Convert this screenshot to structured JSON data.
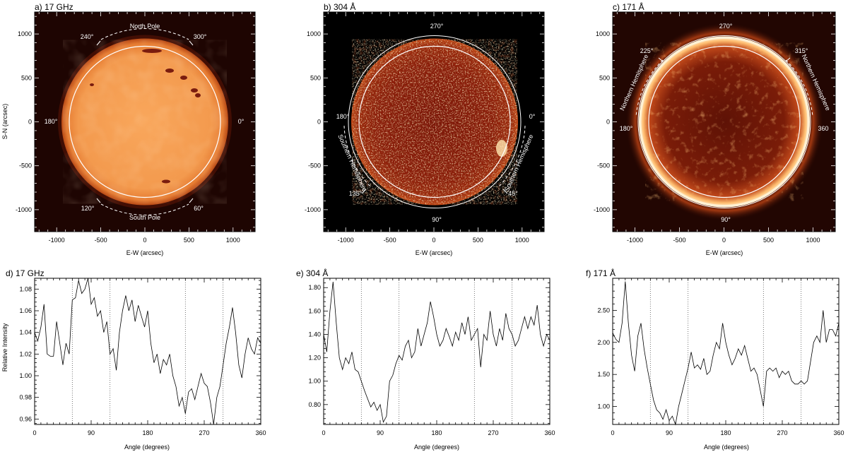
{
  "figure": {
    "panels": [
      {
        "label": "a) 17 GHz"
      },
      {
        "label": "b) 304 Å"
      },
      {
        "label": "c) 171 Å"
      },
      {
        "label": "d) 17 GHz"
      },
      {
        "label": "e) 304 Å"
      },
      {
        "label": "f) 171 Å"
      }
    ]
  },
  "images": {
    "xlabel": "E-W (arcsec)",
    "ylabel": "S-N (arcsec)",
    "tick_values": [
      -1000,
      -500,
      0,
      500,
      1000
    ],
    "range": [
      -1250,
      1250
    ],
    "colormap": [
      "#2a0602",
      "#8a1a08",
      "#e0641c",
      "#f6a25c",
      "#fff2dc"
    ],
    "a": {
      "angle_labels": [
        "North Pole",
        "South Pole",
        "240°",
        "300°",
        "180°",
        "0°",
        "120°",
        "60°"
      ],
      "boundary_angles": [
        60,
        120,
        240,
        300
      ]
    },
    "b": {
      "angle_labels": [
        "270°",
        "90°",
        "180°",
        "0°",
        "135°",
        "45°"
      ],
      "hemisphere_labels": [
        "Southern Hemisphere",
        "Southern Hemisphere"
      ],
      "boundary_angles": [
        45,
        135
      ]
    },
    "c": {
      "angle_labels": [
        "270°",
        "90°",
        "180°",
        "360",
        "225°",
        "315°"
      ],
      "hemisphere_labels": [
        "Northern Hemisphere",
        "Northern Hemisphere"
      ],
      "boundary_angles": [
        225,
        315
      ]
    }
  },
  "chart_data": [
    {
      "type": "line",
      "panel": "d) 17 GHz",
      "xlabel": "Angle (degrees)",
      "ylabel": "Relative Intensity",
      "xlim": [
        0,
        360
      ],
      "ylim": [
        0.955,
        1.09
      ],
      "xticks": [
        0,
        90,
        180,
        270,
        360
      ],
      "yticks": [
        0.96,
        0.98,
        1.0,
        1.02,
        1.04,
        1.06,
        1.08
      ],
      "ytick_labels": [
        "0.96",
        "0.98",
        "1.00",
        "1.02",
        "1.04",
        "1.06",
        "1.08"
      ],
      "vlines": [
        60,
        120,
        240,
        300
      ],
      "x": [
        0,
        5,
        10,
        15,
        20,
        25,
        30,
        35,
        40,
        45,
        50,
        55,
        60,
        65,
        70,
        75,
        80,
        85,
        90,
        95,
        100,
        105,
        110,
        115,
        120,
        125,
        130,
        135,
        140,
        145,
        150,
        155,
        160,
        165,
        170,
        175,
        180,
        185,
        190,
        195,
        200,
        205,
        210,
        215,
        220,
        225,
        230,
        235,
        240,
        245,
        250,
        255,
        260,
        265,
        270,
        275,
        280,
        285,
        290,
        295,
        300,
        305,
        310,
        315,
        320,
        325,
        330,
        335,
        340,
        345,
        350,
        355,
        360
      ],
      "y": [
        1.04,
        1.032,
        1.045,
        1.066,
        1.02,
        1.018,
        1.018,
        1.05,
        1.03,
        1.01,
        1.03,
        1.02,
        1.07,
        1.072,
        1.088,
        1.076,
        1.08,
        1.09,
        1.066,
        1.072,
        1.055,
        1.06,
        1.04,
        1.05,
        1.02,
        1.025,
        1.005,
        1.04,
        1.06,
        1.074,
        1.06,
        1.07,
        1.05,
        1.065,
        1.055,
        1.045,
        1.06,
        1.03,
        1.012,
        1.02,
        1.002,
        1.015,
        1.01,
        1.02,
        1.0,
        0.99,
        0.972,
        0.98,
        0.965,
        0.985,
        0.988,
        0.978,
        0.99,
        1.002,
        0.993,
        0.99,
        0.975,
        0.955,
        0.98,
        0.99,
        1.01,
        1.03,
        1.045,
        1.063,
        1.04,
        1.01,
        0.998,
        1.02,
        1.035,
        1.025,
        1.02,
        1.035,
        1.03
      ]
    },
    {
      "type": "line",
      "panel": "e) 304 Å",
      "xlabel": "Angle (degrees)",
      "ylabel": "",
      "xlim": [
        0,
        360
      ],
      "ylim": [
        0.63,
        1.88
      ],
      "xticks": [
        0,
        90,
        180,
        270,
        360
      ],
      "yticks": [
        0.8,
        1.0,
        1.2,
        1.4,
        1.6,
        1.8
      ],
      "ytick_labels": [
        "0.80",
        "1.00",
        "1.20",
        "1.40",
        "1.60",
        "1.80"
      ],
      "vlines": [
        60,
        120,
        240,
        300
      ],
      "x": [
        0,
        5,
        10,
        15,
        20,
        25,
        30,
        35,
        40,
        45,
        50,
        55,
        60,
        65,
        70,
        75,
        80,
        85,
        90,
        95,
        100,
        105,
        110,
        115,
        120,
        125,
        130,
        135,
        140,
        145,
        150,
        155,
        160,
        165,
        170,
        175,
        180,
        185,
        190,
        195,
        200,
        205,
        210,
        215,
        220,
        225,
        230,
        235,
        240,
        245,
        250,
        255,
        260,
        265,
        270,
        275,
        280,
        285,
        290,
        295,
        300,
        305,
        310,
        315,
        320,
        325,
        330,
        335,
        340,
        345,
        350,
        355,
        360
      ],
      "y": [
        1.4,
        1.25,
        1.6,
        1.85,
        1.5,
        1.2,
        1.1,
        1.2,
        1.15,
        1.25,
        1.1,
        1.08,
        1.0,
        0.92,
        0.85,
        0.78,
        0.82,
        0.75,
        0.8,
        0.65,
        0.7,
        1.0,
        1.05,
        1.15,
        1.22,
        1.18,
        1.3,
        1.35,
        1.2,
        1.25,
        1.45,
        1.3,
        1.4,
        1.5,
        1.68,
        1.55,
        1.4,
        1.3,
        1.35,
        1.45,
        1.38,
        1.3,
        1.42,
        1.35,
        1.5,
        1.4,
        1.55,
        1.35,
        1.4,
        1.45,
        1.12,
        1.4,
        1.35,
        1.6,
        1.4,
        1.3,
        1.45,
        1.35,
        1.58,
        1.45,
        1.4,
        1.3,
        1.35,
        1.45,
        1.55,
        1.45,
        1.55,
        1.48,
        1.65,
        1.4,
        1.3,
        1.4,
        1.35
      ]
    },
    {
      "type": "line",
      "panel": "f) 171 Å",
      "xlabel": "Angle (degrees)",
      "ylabel": "",
      "xlim": [
        0,
        360
      ],
      "ylim": [
        0.72,
        3.0
      ],
      "xticks": [
        0,
        90,
        180,
        270,
        360
      ],
      "yticks": [
        1.0,
        1.5,
        2.0,
        2.5
      ],
      "ytick_labels": [
        "1.00",
        "1.50",
        "2.00",
        "2.50"
      ],
      "vlines": [
        60,
        120,
        240,
        300
      ],
      "x": [
        0,
        5,
        10,
        15,
        20,
        25,
        30,
        35,
        40,
        45,
        50,
        55,
        60,
        65,
        70,
        75,
        80,
        85,
        90,
        95,
        100,
        105,
        110,
        115,
        120,
        125,
        130,
        135,
        140,
        145,
        150,
        155,
        160,
        165,
        170,
        175,
        180,
        185,
        190,
        195,
        200,
        205,
        210,
        215,
        220,
        225,
        230,
        235,
        240,
        245,
        250,
        255,
        260,
        265,
        270,
        275,
        280,
        285,
        290,
        295,
        300,
        305,
        310,
        315,
        320,
        325,
        330,
        335,
        340,
        345,
        350,
        355,
        360
      ],
      "y": [
        2.15,
        2.05,
        2.0,
        2.3,
        2.95,
        2.3,
        1.8,
        1.55,
        2.1,
        2.3,
        1.9,
        1.6,
        1.35,
        1.1,
        0.95,
        0.9,
        0.8,
        0.95,
        0.78,
        0.85,
        0.72,
        1.0,
        1.2,
        1.4,
        1.6,
        1.85,
        1.6,
        1.65,
        1.58,
        1.75,
        1.5,
        1.55,
        1.8,
        2.0,
        1.9,
        2.3,
        2.0,
        1.8,
        1.65,
        1.75,
        1.9,
        1.8,
        1.95,
        1.75,
        1.55,
        1.6,
        1.5,
        1.25,
        1.0,
        1.55,
        1.6,
        1.55,
        1.6,
        1.45,
        1.55,
        1.5,
        1.55,
        1.4,
        1.35,
        1.35,
        1.4,
        1.35,
        1.4,
        1.7,
        2.0,
        2.1,
        2.0,
        2.5,
        2.0,
        2.2,
        2.2,
        2.1,
        2.3
      ]
    }
  ]
}
